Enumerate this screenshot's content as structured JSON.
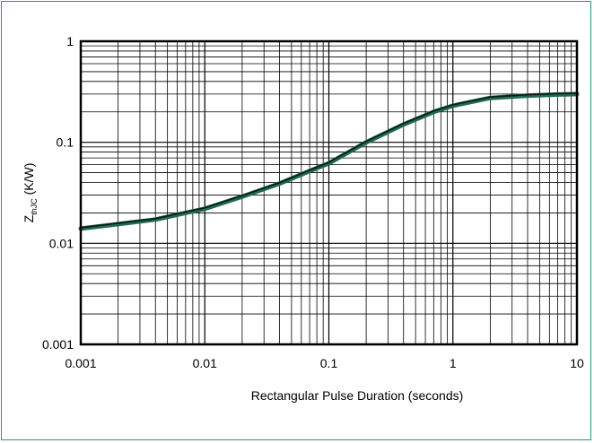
{
  "chart_data": {
    "type": "line",
    "xscale": "log",
    "yscale": "log",
    "xlim": [
      0.001,
      10
    ],
    "ylim": [
      0.001,
      1
    ],
    "xlabel": "Rectangular Pulse Duration (seconds)",
    "ylabel_main": "Z",
    "ylabel_sub": "thJC",
    "ylabel_unit": " (K/W)",
    "x_ticks": [
      {
        "value": 0.001,
        "label": "0.001"
      },
      {
        "value": 0.01,
        "label": "0.01"
      },
      {
        "value": 0.1,
        "label": "0.1"
      },
      {
        "value": 1,
        "label": "1"
      },
      {
        "value": 10,
        "label": "10"
      }
    ],
    "y_ticks": [
      {
        "value": 1,
        "label": "1"
      },
      {
        "value": 0.1,
        "label": "0.1"
      },
      {
        "value": 0.01,
        "label": "0.01"
      },
      {
        "value": 0.001,
        "label": "0.001"
      }
    ],
    "grid": true,
    "series": [
      {
        "color": "#1f6b50",
        "x": [
          0.001,
          0.002,
          0.004,
          0.007,
          0.01,
          0.02,
          0.04,
          0.07,
          0.1,
          0.2,
          0.4,
          0.7,
          1,
          2,
          4,
          7,
          10
        ],
        "y": [
          0.014,
          0.0155,
          0.0172,
          0.02,
          0.022,
          0.029,
          0.039,
          0.052,
          0.062,
          0.1,
          0.15,
          0.2,
          0.23,
          0.275,
          0.29,
          0.297,
          0.3
        ]
      }
    ]
  }
}
